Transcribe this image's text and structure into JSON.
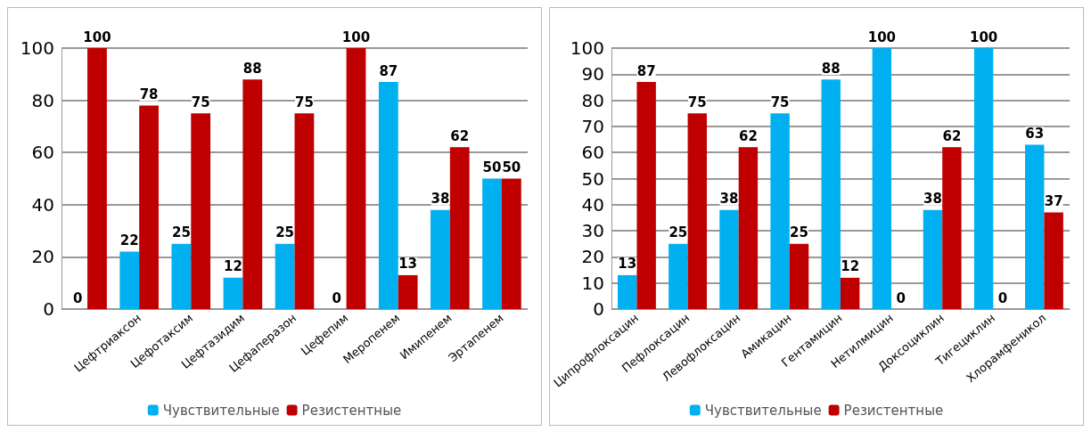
{
  "chart_data": [
    {
      "type": "bar",
      "categories": [
        null,
        "Цефтриаксон",
        "Цефотаксим",
        "Цефтазидим",
        "Цефаперазон",
        "Цефепим",
        "Меропенем",
        "Имипенем",
        "Эртапенем"
      ],
      "series": [
        {
          "name": "Чувствительные",
          "color": "#00b0f0",
          "values": [
            0,
            22,
            25,
            12,
            25,
            0,
            87,
            38,
            50
          ]
        },
        {
          "name": "Резистентные",
          "color": "#c00000",
          "values": [
            100,
            78,
            75,
            88,
            75,
            100,
            13,
            62,
            50
          ]
        }
      ],
      "ylim": [
        0,
        100
      ],
      "yticks": [
        0,
        20,
        40,
        60,
        80,
        100
      ],
      "grid": "y",
      "legend": "bottom",
      "data_labels": true
    },
    {
      "type": "bar",
      "categories": [
        "Ципрофлоксацин",
        "Пефлоксацин",
        "Левофлоксацин",
        "Амикацин",
        "Гентамицин",
        "Нетилмицин",
        "Доксоциклин",
        "Тигециклин",
        "Хлорамфеникол"
      ],
      "series": [
        {
          "name": "Чувствительные",
          "color": "#00b0f0",
          "values": [
            13,
            25,
            38,
            75,
            88,
            100,
            38,
            100,
            63
          ]
        },
        {
          "name": "Резистентные",
          "color": "#c00000",
          "values": [
            87,
            75,
            62,
            25,
            12,
            0,
            62,
            0,
            37
          ]
        }
      ],
      "ylim": [
        0,
        100
      ],
      "yticks": [
        0,
        10,
        20,
        30,
        40,
        50,
        60,
        70,
        80,
        90,
        100
      ],
      "grid": "y",
      "legend": "bottom",
      "data_labels": true
    }
  ]
}
